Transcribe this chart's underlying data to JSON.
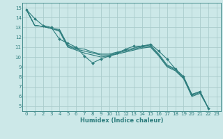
{
  "xlabel": "Humidex (Indice chaleur)",
  "bg_color": "#cce8e8",
  "grid_color": "#aacccc",
  "line_color": "#2d7d7d",
  "xlim": [
    -0.5,
    23.5
  ],
  "ylim": [
    4.5,
    15.5
  ],
  "xticks": [
    0,
    1,
    2,
    3,
    4,
    5,
    6,
    7,
    8,
    9,
    10,
    11,
    12,
    13,
    14,
    15,
    16,
    17,
    18,
    19,
    20,
    21,
    22,
    23
  ],
  "yticks": [
    5,
    6,
    7,
    8,
    9,
    10,
    11,
    12,
    13,
    14,
    15
  ],
  "series": [
    [
      14.8,
      13.9,
      13.2,
      13.0,
      11.8,
      11.4,
      11.0,
      10.1,
      9.4,
      9.8,
      10.1,
      10.4,
      10.8,
      11.1,
      11.1,
      11.3,
      10.6,
      9.8,
      8.8,
      8.0,
      6.2,
      6.5,
      4.8
    ],
    [
      14.8,
      13.2,
      13.1,
      12.9,
      12.8,
      11.2,
      10.9,
      10.8,
      10.5,
      10.3,
      10.3,
      10.5,
      10.7,
      10.9,
      11.1,
      11.2,
      10.3,
      9.2,
      8.8,
      8.0,
      6.2,
      6.5,
      4.8
    ],
    [
      14.8,
      13.2,
      13.1,
      12.9,
      12.7,
      11.1,
      10.8,
      10.6,
      10.4,
      10.2,
      10.2,
      10.4,
      10.6,
      10.8,
      11.0,
      11.1,
      10.2,
      9.1,
      8.7,
      7.9,
      6.1,
      6.4,
      4.8
    ],
    [
      14.8,
      13.2,
      13.1,
      12.9,
      12.6,
      11.0,
      10.7,
      10.4,
      10.2,
      10.0,
      10.1,
      10.3,
      10.5,
      10.7,
      10.9,
      11.0,
      10.1,
      9.0,
      8.6,
      7.8,
      6.0,
      6.3,
      4.8
    ]
  ]
}
